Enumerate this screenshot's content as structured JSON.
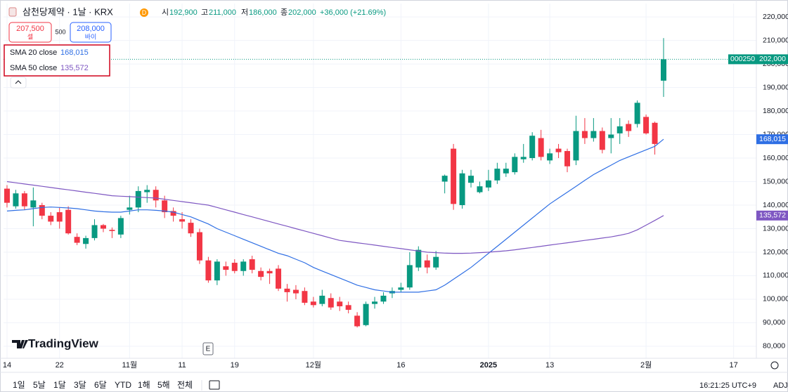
{
  "chart_data": {
    "type": "candlestick",
    "header": {
      "symbol": "삼천당제약 · 1날 · KRX",
      "badge": "D",
      "ohlc": [
        {
          "label": "시",
          "value": "192,900"
        },
        {
          "label": "고",
          "value": "211,000"
        },
        {
          "label": "저",
          "value": "186,000"
        },
        {
          "label": "종",
          "value": "202,000"
        }
      ],
      "change": "+36,000 (+21.69%)"
    },
    "trade": {
      "sell_price": "207,500",
      "sell_label": "셀",
      "spread": "500",
      "buy_price": "208,000",
      "buy_label": "바이"
    },
    "up_color": "#089981",
    "down_color": "#f23645",
    "open": [
      147000,
      139500,
      145000,
      139000,
      140000,
      135500,
      137000,
      138000,
      126500,
      123500,
      126000,
      131500,
      129500,
      127500,
      138000,
      139000,
      145500,
      146500,
      142000,
      137500,
      134000,
      132500,
      128500,
      116500,
      108000,
      114000,
      115500,
      112000,
      117000,
      112000,
      112000,
      113000,
      104500,
      104000,
      103500,
      99000,
      98000,
      100500,
      99000,
      97500,
      93000,
      89000,
      98000,
      99000,
      102500,
      104000,
      105000,
      113500,
      116500,
      113500,
      150000,
      164000,
      140000,
      149500,
      145500,
      147500,
      150500,
      153500,
      154000,
      159500,
      160000,
      168500,
      159000,
      164000,
      163000,
      159000,
      171500,
      168500,
      171500,
      168500,
      170500,
      174500,
      174500,
      177500,
      175000,
      192900
    ],
    "high": [
      148500,
      146500,
      146000,
      147500,
      141000,
      137000,
      139000,
      139500,
      128000,
      127000,
      134000,
      132000,
      130500,
      135500,
      144000,
      148000,
      148500,
      148000,
      144000,
      139000,
      137000,
      134000,
      130000,
      118000,
      117000,
      116000,
      117000,
      117000,
      118500,
      113500,
      113000,
      114500,
      106500,
      106000,
      105000,
      101000,
      104000,
      102500,
      101000,
      99000,
      94500,
      99000,
      101000,
      103000,
      105000,
      107000,
      120000,
      122500,
      119000,
      120500,
      153000,
      166000,
      155000,
      155000,
      150000,
      155000,
      158000,
      158000,
      162000,
      166000,
      171000,
      172000,
      164000,
      166000,
      164000,
      178000,
      177000,
      177000,
      173000,
      177000,
      177000,
      176000,
      184500,
      178500,
      175500,
      211000
    ],
    "low": [
      139000,
      138500,
      138000,
      131000,
      134000,
      131500,
      130000,
      127500,
      123000,
      121500,
      125000,
      128500,
      126000,
      126000,
      136000,
      137000,
      141000,
      139000,
      134500,
      133000,
      130000,
      126500,
      115000,
      107000,
      106000,
      110000,
      111000,
      110000,
      111000,
      108000,
      106500,
      103500,
      99000,
      100000,
      97500,
      96500,
      97000,
      95500,
      95000,
      94000,
      88000,
      88500,
      96000,
      98000,
      100500,
      103000,
      104000,
      112000,
      111000,
      112500,
      145000,
      138000,
      138500,
      147500,
      145000,
      146000,
      149000,
      152000,
      153000,
      158000,
      159000,
      159000,
      157500,
      160000,
      154000,
      157000,
      166000,
      167000,
      162000,
      162000,
      166000,
      169000,
      173000,
      170000,
      161500,
      186000
    ],
    "close": [
      141000,
      145000,
      139500,
      142000,
      135500,
      133000,
      133000,
      128000,
      124000,
      126000,
      131500,
      130000,
      129000,
      134500,
      139000,
      146000,
      146500,
      142000,
      137000,
      135500,
      133000,
      128000,
      116500,
      108000,
      116000,
      112500,
      112000,
      116000,
      112500,
      109500,
      111000,
      104500,
      103000,
      102500,
      98500,
      97500,
      101500,
      96500,
      97000,
      95500,
      88500,
      98000,
      99000,
      101500,
      103500,
      105000,
      114500,
      121000,
      113500,
      118000,
      152500,
      140500,
      153500,
      152500,
      148000,
      150500,
      155500,
      155500,
      160500,
      160500,
      169500,
      160500,
      162000,
      162500,
      156500,
      171500,
      168500,
      171500,
      163500,
      170000,
      173500,
      171500,
      183500,
      170500,
      166000,
      202000
    ],
    "last_price_label": "202,000",
    "countdown": "000250",
    "series": [
      {
        "name": "SMA 20 close",
        "color": "#2f6fe4",
        "last_value_label": "168,015",
        "values": [
          137500,
          137800,
          138000,
          138500,
          139000,
          139200,
          139000,
          138800,
          138500,
          138000,
          137500,
          137200,
          137000,
          137000,
          137500,
          138000,
          138000,
          137800,
          137500,
          137000,
          136000,
          135000,
          133500,
          132000,
          130000,
          128500,
          127000,
          125500,
          124000,
          122500,
          121000,
          119500,
          118500,
          117000,
          115500,
          113500,
          112000,
          110500,
          109000,
          107500,
          106000,
          105000,
          104000,
          103500,
          103000,
          103000,
          103000,
          103000,
          103500,
          104000,
          106000,
          108500,
          111000,
          113500,
          116500,
          119500,
          122500,
          125500,
          128500,
          131500,
          134500,
          137500,
          140500,
          143000,
          145500,
          148000,
          150500,
          153000,
          155000,
          157000,
          159000,
          160500,
          162000,
          163500,
          165000,
          168015
        ]
      },
      {
        "name": "SMA 50 close",
        "color": "#7e57c2",
        "last_value_label": "135,572",
        "values": [
          150000,
          149500,
          149000,
          148500,
          148000,
          147500,
          147000,
          146500,
          146000,
          145500,
          145000,
          144500,
          144000,
          143800,
          143600,
          143400,
          143200,
          143000,
          142500,
          142000,
          141500,
          141000,
          140500,
          140000,
          139000,
          138000,
          137000,
          136000,
          135000,
          134000,
          133000,
          132000,
          131000,
          130000,
          129000,
          128000,
          127000,
          126000,
          125000,
          124500,
          124000,
          123500,
          123000,
          122500,
          122000,
          121500,
          121000,
          120500,
          120000,
          119800,
          119600,
          119500,
          119500,
          119600,
          119800,
          120000,
          120300,
          120600,
          121000,
          121500,
          122000,
          122500,
          123000,
          123500,
          124000,
          124500,
          125000,
          125500,
          126000,
          126500,
          127200,
          128000,
          129500,
          131500,
          133500,
          135572
        ]
      }
    ],
    "xticks": [
      {
        "value": 0,
        "label": "14"
      },
      {
        "value": 6,
        "label": "22"
      },
      {
        "value": 14,
        "label": "11월"
      },
      {
        "value": 20,
        "label": "11"
      },
      {
        "value": 26,
        "label": "19"
      },
      {
        "value": 35,
        "label": "12월"
      },
      {
        "value": 45,
        "label": "16"
      },
      {
        "value": 55,
        "label": "2025"
      },
      {
        "value": 62,
        "label": "13"
      },
      {
        "value": 73,
        "label": "2월"
      },
      {
        "value": 83,
        "label": "17"
      }
    ],
    "xlim": [
      -0.4,
      85.6
    ],
    "ylim": [
      74900,
      225700
    ],
    "yticks": [
      {
        "value": 80000,
        "label": "80,000"
      },
      {
        "value": 90000,
        "label": "90,000"
      },
      {
        "value": 100000,
        "label": "100,000"
      },
      {
        "value": 110000,
        "label": "110,000"
      },
      {
        "value": 120000,
        "label": "120,000"
      },
      {
        "value": 130000,
        "label": "130,000"
      },
      {
        "value": 140000,
        "label": "140,000"
      },
      {
        "value": 150000,
        "label": "150,000"
      },
      {
        "value": 160000,
        "label": "160,000"
      },
      {
        "value": 170000,
        "label": "170,000"
      },
      {
        "value": 180000,
        "label": "180,000"
      },
      {
        "value": 190000,
        "label": "190,000"
      },
      {
        "value": 200000,
        "label": "200,000"
      },
      {
        "value": 210000,
        "label": "210,000"
      },
      {
        "value": 220000,
        "label": "220,000"
      }
    ],
    "grid": true,
    "logo": "TradingView",
    "event_marker": "E",
    "periods": [
      "1일",
      "5날",
      "1달",
      "3달",
      "6달",
      "YTD",
      "1해",
      "5해",
      "전체"
    ],
    "clock": "16:21:25 UTC+9",
    "adjust": "ADJ"
  }
}
